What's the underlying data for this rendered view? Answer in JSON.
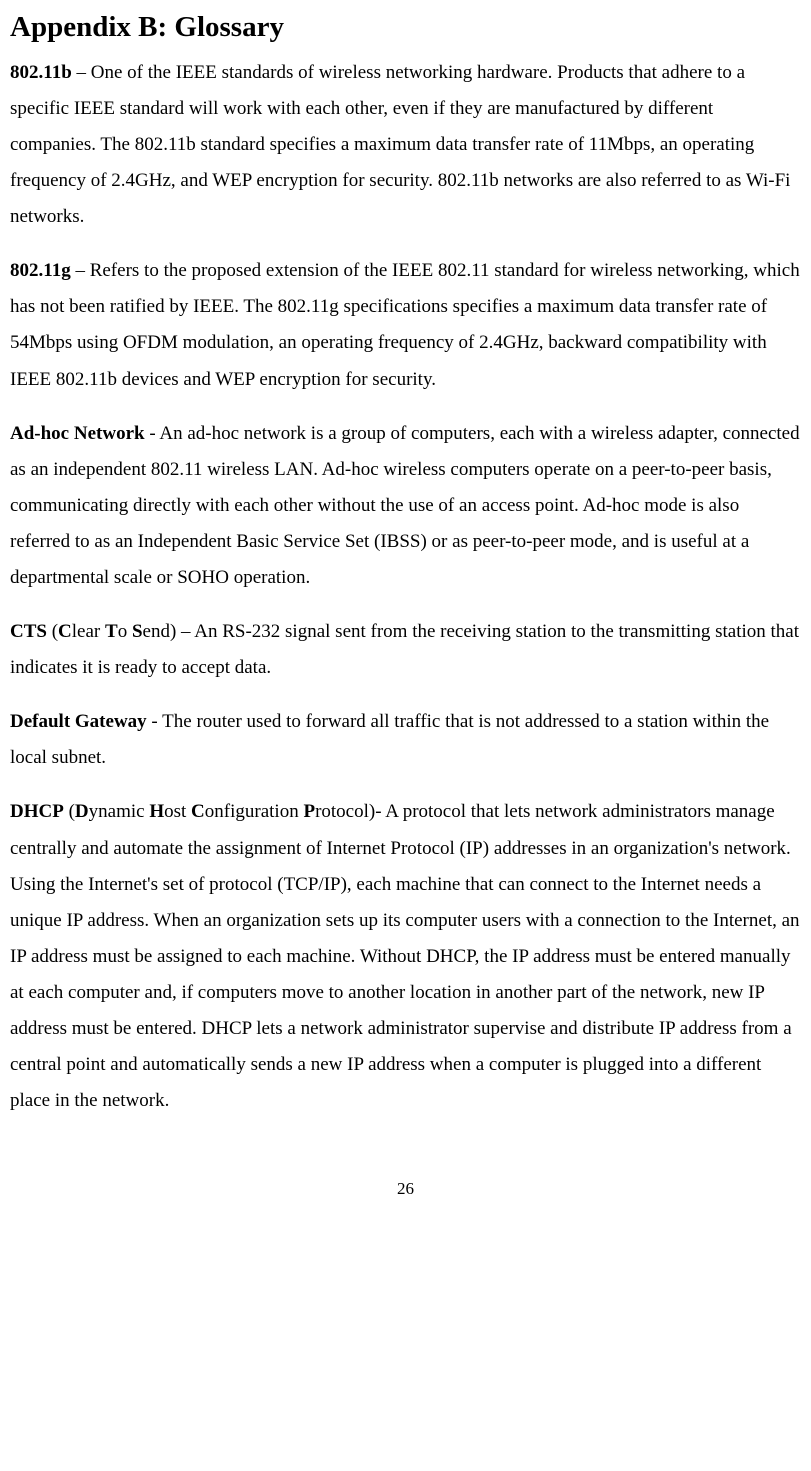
{
  "title": "Appendix B: Glossary",
  "entries": [
    {
      "term": "802.11b",
      "sep": " – ",
      "def": "One of the IEEE standards of wireless networking hardware. Products that adhere to a specific IEEE standard will work with each other, even if they are manufactured by different companies. The 802.11b standard specifies a maximum data transfer rate of 11Mbps, an operating frequency of 2.4GHz, and WEP encryption for security.  802.11b networks are also referred to as Wi-Fi networks."
    },
    {
      "term": "802.11g",
      "sep": " – ",
      "def": "Refers to the proposed extension of the IEEE 802.11 standard for wireless networking, which has not been ratified by IEEE. The 802.11g specifications specifies a maximum data transfer rate of 54Mbps using OFDM modulation, an operating frequency of 2.4GHz, backward compatibility with IEEE 802.11b devices and WEP encryption for security."
    },
    {
      "term": "Ad-hoc Network",
      "sep": " - ",
      "def": "An ad-hoc network is a group of computers, each with a wireless adapter, connected as an independent 802.11 wireless LAN. Ad-hoc wireless computers operate on a peer-to-peer basis, communicating directly with each other without the use of an access point. Ad-hoc mode is also referred to as an Independent Basic Service Set (IBSS) or as peer-to-peer mode, and is useful at a departmental scale or SOHO operation."
    },
    {
      "term": "CTS",
      "sep_before_acronym": " (",
      "acronym_parts": [
        {
          "b": "C",
          "r": "lear "
        },
        {
          "b": "T",
          "r": "o "
        },
        {
          "b": "S",
          "r": "end"
        }
      ],
      "sep_after_acronym": ") – ",
      "def": "An RS-232 signal sent from the receiving station to the transmitting station that indicates it is ready to accept data."
    },
    {
      "term": "Default Gateway",
      "sep": " - ",
      "def": "The router used to forward all traffic that is not addressed to a station within the local subnet."
    },
    {
      "term": "DHCP",
      "sep_before_acronym": " (",
      "acronym_parts": [
        {
          "b": "D",
          "r": "ynamic "
        },
        {
          "b": "H",
          "r": "ost "
        },
        {
          "b": "C",
          "r": "onfiguration "
        },
        {
          "b": "P",
          "r": "rotocol"
        }
      ],
      "sep_after_acronym": ")- ",
      "def": "A protocol that lets network administrators manage centrally and automate the assignment of Internet Protocol (IP) addresses in an organization's network. Using the Internet's set of protocol (TCP/IP), each machine that can connect to the Internet needs a unique IP address. When an organization sets up its computer users with a connection to the Internet, an IP address must be assigned to each machine. Without DHCP, the IP address must be entered manually at each computer and, if computers move to another location in another part of the network, new IP address must be entered. DHCP lets a network administrator supervise and distribute IP address from a central point and automatically sends a new IP address when a computer is plugged into a different place in the network."
    }
  ],
  "page_number": "26",
  "styles": {
    "title_fontsize": 29,
    "body_fontsize": 19,
    "line_height": 1.9,
    "font_family": "Times New Roman",
    "text_color": "#000000",
    "background_color": "#ffffff"
  }
}
